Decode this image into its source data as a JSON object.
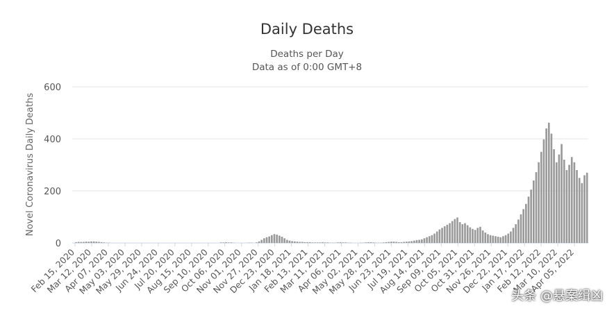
{
  "chart_data": {
    "type": "bar",
    "title": "Daily Deaths",
    "subtitle_lines": [
      "Deaths per Day",
      "Data as of 0:00 GMT+8"
    ],
    "ylabel": "Novel Coronavirus Daily Deaths",
    "xlabel": "",
    "ylim": [
      0,
      600
    ],
    "yticks": [
      0,
      200,
      400,
      600
    ],
    "grid": true,
    "bar_color": "#999999",
    "x_tick_labels": [
      "Feb 15, 2020",
      "Mar 12, 2020",
      "Apr 07, 2020",
      "May 03, 2020",
      "May 29, 2020",
      "Jun 24, 2020",
      "Jul 20, 2020",
      "Aug 15, 2020",
      "Sep 10, 2020",
      "Oct 06, 2020",
      "Nov 01, 2020",
      "Nov 27, 2020",
      "Dec 23, 2020",
      "Jan 18, 2021",
      "Feb 13, 2021",
      "Mar 11, 2021",
      "Apr 06, 2021",
      "May 02, 2021",
      "May 28, 2021",
      "Jun 23, 2021",
      "Jul 19, 2021",
      "Aug 14, 2021",
      "Sep 09, 2021",
      "Oct 05, 2021",
      "Oct 31, 2021",
      "Nov 26, 2021",
      "Dec 22, 2021",
      "Jan 17, 2022",
      "Feb 12, 2022",
      "Mar 10, 2022",
      "Apr 05, 2022"
    ],
    "series": [
      {
        "values": [
          0,
          3,
          4,
          4,
          4,
          5,
          5,
          6,
          6,
          5,
          4,
          3,
          2,
          1,
          1,
          0,
          0,
          0,
          0,
          0,
          0,
          0,
          0,
          0,
          0,
          0,
          0,
          0,
          0,
          0,
          0,
          0,
          0,
          0,
          0,
          0,
          0,
          0,
          0,
          0,
          0,
          0,
          0,
          0,
          0,
          0,
          0,
          0,
          0,
          0,
          0,
          0,
          0,
          0,
          0,
          0,
          0,
          0,
          2,
          2,
          3,
          2,
          2,
          1,
          0,
          0,
          0,
          0,
          0,
          1,
          1,
          0,
          2,
          6,
          12,
          18,
          22,
          25,
          30,
          34,
          32,
          28,
          24,
          18,
          12,
          9,
          7,
          6,
          5,
          4,
          4,
          3,
          3,
          3,
          2,
          2,
          2,
          2,
          3,
          2,
          2,
          1,
          1,
          1,
          2,
          3,
          2,
          2,
          1,
          1,
          0,
          0,
          0,
          1,
          1,
          2,
          3,
          3,
          2,
          1,
          1,
          1,
          2,
          3,
          4,
          5,
          5,
          4,
          3,
          3,
          4,
          5,
          6,
          7,
          9,
          11,
          12,
          14,
          18,
          22,
          26,
          30,
          36,
          44,
          52,
          58,
          64,
          70,
          76,
          84,
          92,
          98,
          80,
          72,
          76,
          68,
          60,
          54,
          50,
          58,
          62,
          48,
          40,
          34,
          30,
          28,
          26,
          24,
          22,
          26,
          30,
          36,
          44,
          58,
          72,
          90,
          110,
          130,
          150,
          178,
          205,
          240,
          272,
          310,
          350,
          398,
          440,
          462,
          420,
          360,
          310,
          340,
          380,
          320,
          280,
          300,
          330,
          310,
          280,
          250,
          230,
          260,
          270
        ]
      }
    ]
  },
  "watermark": "头条 @悬案缉凶"
}
